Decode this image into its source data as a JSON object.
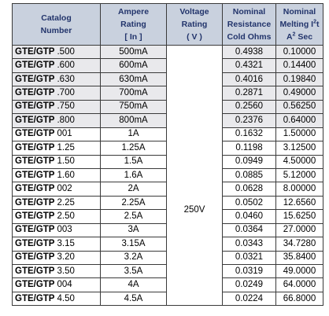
{
  "headers": {
    "catalog": [
      "Catalog",
      "Number"
    ],
    "ampere": [
      "Ampere",
      "Rating",
      "[ In ]"
    ],
    "voltage": [
      "Voltage",
      "Rating",
      "( V )"
    ],
    "resistance": [
      "Nominal",
      "Resistance",
      "Cold Ohms"
    ],
    "melting": {
      "line1": "Nominal",
      "line2_prefix": "Melting I",
      "line2_sup": "2",
      "line2_suffix": "t",
      "line3_prefix": "A",
      "line3_sup": "2",
      "line3_suffix": " Sec"
    }
  },
  "voltage_value": "250V",
  "rows": [
    {
      "series": "GTE/GTP",
      "num": ".500",
      "ampere": "500mA",
      "resistance": "0.4938",
      "melting": "0.10000",
      "shaded": true
    },
    {
      "series": "GTE/GTP",
      "num": ".600",
      "ampere": "600mA",
      "resistance": "0.4321",
      "melting": "0.14400",
      "shaded": true
    },
    {
      "series": "GTE/GTP",
      "num": ".630",
      "ampere": "630mA",
      "resistance": "0.4016",
      "melting": "0.19840",
      "shaded": true
    },
    {
      "series": "GTE/GTP",
      "num": ".700",
      "ampere": "700mA",
      "resistance": "0.2871",
      "melting": "0.49000",
      "shaded": true
    },
    {
      "series": "GTE/GTP",
      "num": ".750",
      "ampere": "750mA",
      "resistance": "0.2560",
      "melting": "0.56250",
      "shaded": true
    },
    {
      "series": "GTE/GTP",
      "num": ".800",
      "ampere": "800mA",
      "resistance": "0.2376",
      "melting": "0.64000",
      "shaded": true
    },
    {
      "series": "GTE/GTP",
      "num": "001",
      "ampere": "1A",
      "resistance": "0.1632",
      "melting": "1.50000",
      "shaded": false
    },
    {
      "series": "GTE/GTP",
      "num": "1.25",
      "ampere": "1.25A",
      "resistance": "0.1198",
      "melting": "3.12500",
      "shaded": false
    },
    {
      "series": "GTE/GTP",
      "num": "1.50",
      "ampere": "1.5A",
      "resistance": "0.0949",
      "melting": "4.50000",
      "shaded": false
    },
    {
      "series": "GTE/GTP",
      "num": "1.60",
      "ampere": "1.6A",
      "resistance": "0.0885",
      "melting": "5.12000",
      "shaded": false
    },
    {
      "series": "GTE/GTP",
      "num": "002",
      "ampere": "2A",
      "resistance": "0.0628",
      "melting": "8.00000",
      "shaded": false
    },
    {
      "series": "GTE/GTP",
      "num": "2.25",
      "ampere": "2.25A",
      "resistance": "0.0502",
      "melting": "12.6560",
      "shaded": false
    },
    {
      "series": "GTE/GTP",
      "num": "2.50",
      "ampere": "2.5A",
      "resistance": "0.0460",
      "melting": "15.6250",
      "shaded": false
    },
    {
      "series": "GTE/GTP",
      "num": "003",
      "ampere": "3A",
      "resistance": "0.0364",
      "melting": "27.0000",
      "shaded": false
    },
    {
      "series": "GTE/GTP",
      "num": "3.15",
      "ampere": "3.15A",
      "resistance": "0.0343",
      "melting": "34.7280",
      "shaded": false
    },
    {
      "series": "GTE/GTP",
      "num": "3.20",
      "ampere": "3.2A",
      "resistance": "0.0321",
      "melting": "35.8400",
      "shaded": false
    },
    {
      "series": "GTE/GTP",
      "num": "3.50",
      "ampere": "3.5A",
      "resistance": "0.0319",
      "melting": "49.0000",
      "shaded": false
    },
    {
      "series": "GTE/GTP",
      "num": "004",
      "ampere": "4A",
      "resistance": "0.0249",
      "melting": "64.0000",
      "shaded": false
    },
    {
      "series": "GTE/GTP",
      "num": "4.50",
      "ampere": "4.5A",
      "resistance": "0.0224",
      "melting": "66.8000",
      "shaded": false
    }
  ],
  "colors": {
    "header_bg": "#c9d1de",
    "header_text": "#22346b",
    "shaded_row": "#e9e9ec",
    "border": "#3a3a3a"
  }
}
